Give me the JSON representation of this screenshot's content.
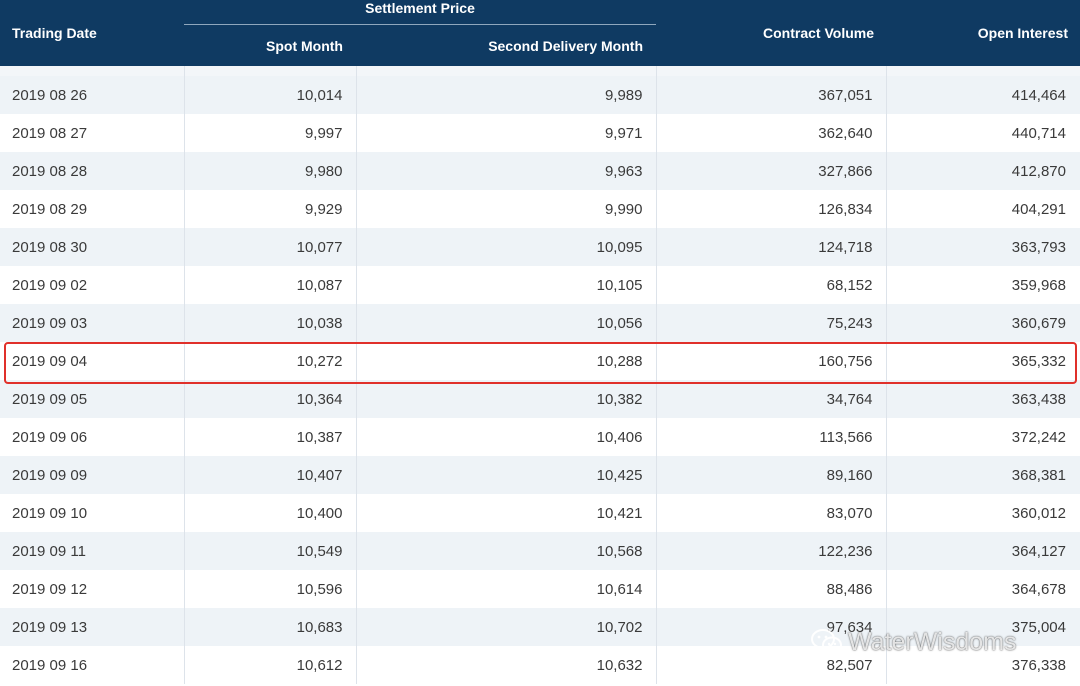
{
  "header": {
    "trading_date": "Trading Date",
    "settlement_price": "Settlement Price",
    "spot_month": "Spot Month",
    "second_delivery_month": "Second Delivery Month",
    "contract_volume": "Contract Volume",
    "open_interest": "Open Interest"
  },
  "rows": [
    {
      "date": "2019 08 26",
      "spot": "10,014",
      "second": "9,989",
      "volume": "367,051",
      "oi": "414,464"
    },
    {
      "date": "2019 08 27",
      "spot": "9,997",
      "second": "9,971",
      "volume": "362,640",
      "oi": "440,714"
    },
    {
      "date": "2019 08 28",
      "spot": "9,980",
      "second": "9,963",
      "volume": "327,866",
      "oi": "412,870"
    },
    {
      "date": "2019 08 29",
      "spot": "9,929",
      "second": "9,990",
      "volume": "126,834",
      "oi": "404,291"
    },
    {
      "date": "2019 08 30",
      "spot": "10,077",
      "second": "10,095",
      "volume": "124,718",
      "oi": "363,793"
    },
    {
      "date": "2019 09 02",
      "spot": "10,087",
      "second": "10,105",
      "volume": "68,152",
      "oi": "359,968"
    },
    {
      "date": "2019 09 03",
      "spot": "10,038",
      "second": "10,056",
      "volume": "75,243",
      "oi": "360,679"
    },
    {
      "date": "2019 09 04",
      "spot": "10,272",
      "second": "10,288",
      "volume": "160,756",
      "oi": "365,332"
    },
    {
      "date": "2019 09 05",
      "spot": "10,364",
      "second": "10,382",
      "volume": "34,764",
      "oi": "363,438"
    },
    {
      "date": "2019 09 06",
      "spot": "10,387",
      "second": "10,406",
      "volume": "113,566",
      "oi": "372,242"
    },
    {
      "date": "2019 09 09",
      "spot": "10,407",
      "second": "10,425",
      "volume": "89,160",
      "oi": "368,381"
    },
    {
      "date": "2019 09 10",
      "spot": "10,400",
      "second": "10,421",
      "volume": "83,070",
      "oi": "360,012"
    },
    {
      "date": "2019 09 11",
      "spot": "10,549",
      "second": "10,568",
      "volume": "122,236",
      "oi": "364,127"
    },
    {
      "date": "2019 09 12",
      "spot": "10,596",
      "second": "10,614",
      "volume": "88,486",
      "oi": "364,678"
    },
    {
      "date": "2019 09 13",
      "spot": "10,683",
      "second": "10,702",
      "volume": "97,634",
      "oi": "375,004"
    },
    {
      "date": "2019 09 16",
      "spot": "10,612",
      "second": "10,632",
      "volume": "82,507",
      "oi": "376,338"
    }
  ],
  "highlighted_row_date": "2019 09 04",
  "watermark": {
    "text": "WaterWisdoms",
    "icon": "wechat-icon"
  },
  "colors": {
    "header_bg": "#0f3a62",
    "highlight_border": "#e0302a",
    "row_alt_bg": "#eef3f7"
  }
}
